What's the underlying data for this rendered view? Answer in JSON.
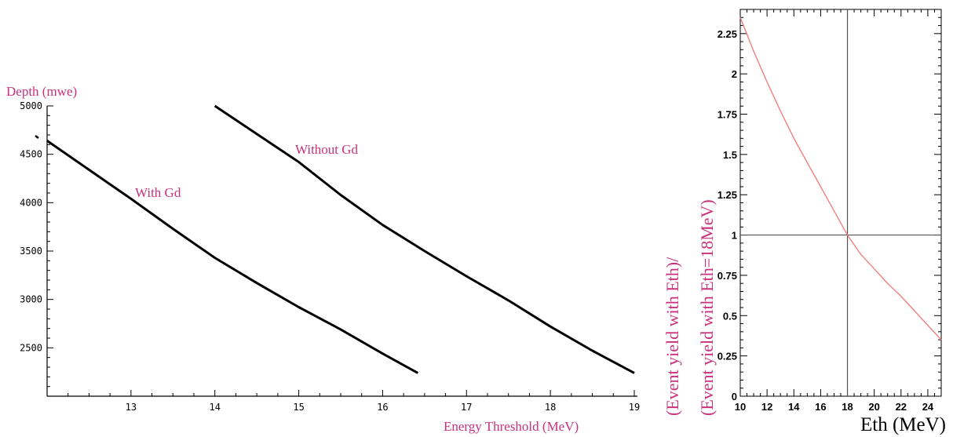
{
  "chart_data": [
    {
      "type": "line",
      "xlabel": "Energy Threshold (MeV)",
      "ylabel": "Depth (mwe)",
      "xlim": [
        12,
        19
      ],
      "ylim": [
        2000,
        5000
      ],
      "x_ticks": [
        "13",
        "14",
        "15",
        "16",
        "17",
        "18",
        "19"
      ],
      "y_ticks": [
        "2500",
        "3000",
        "3500",
        "4000",
        "4500",
        "5000"
      ],
      "series": [
        {
          "name": "With Gd",
          "color": "#000000",
          "x": [
            12.0,
            12.5,
            13.0,
            13.5,
            14.0,
            14.5,
            15.0,
            15.5,
            16.0,
            16.42
          ],
          "y": [
            4640,
            4340,
            4040,
            3730,
            3430,
            3170,
            2920,
            2690,
            2440,
            2240
          ]
        },
        {
          "name": "Without Gd",
          "color": "#000000",
          "x": [
            14.0,
            14.5,
            15.0,
            15.5,
            16.0,
            16.5,
            17.0,
            17.5,
            18.0,
            18.5,
            19.0
          ],
          "y": [
            5000,
            4710,
            4420,
            4080,
            3770,
            3500,
            3240,
            2990,
            2720,
            2470,
            2240
          ]
        }
      ]
    },
    {
      "type": "line",
      "xlabel": "Eth (MeV)",
      "ylabel_line1": "(Event yield with Eth)/",
      "ylabel_line2": "(Event yield with Eth=18MeV)",
      "xlim": [
        10,
        25
      ],
      "ylim": [
        0,
        2.4
      ],
      "x_ticks": [
        "10",
        "12",
        "14",
        "16",
        "18",
        "20",
        "22",
        "24"
      ],
      "y_ticks": [
        "0",
        "0.25",
        "0.5",
        "0.75",
        "1",
        "1.25",
        "1.5",
        "1.75",
        "2",
        "2.25"
      ],
      "reference_x": 18,
      "reference_y": 1,
      "series": [
        {
          "color": "#f08080",
          "x": [
            10,
            11,
            12,
            13,
            14,
            15,
            16,
            17,
            18,
            19,
            20,
            21,
            22,
            23,
            24,
            25
          ],
          "y": [
            2.35,
            2.14,
            1.95,
            1.77,
            1.6,
            1.45,
            1.3,
            1.15,
            1.0,
            0.88,
            0.79,
            0.7,
            0.62,
            0.53,
            0.44,
            0.35
          ]
        }
      ]
    }
  ]
}
